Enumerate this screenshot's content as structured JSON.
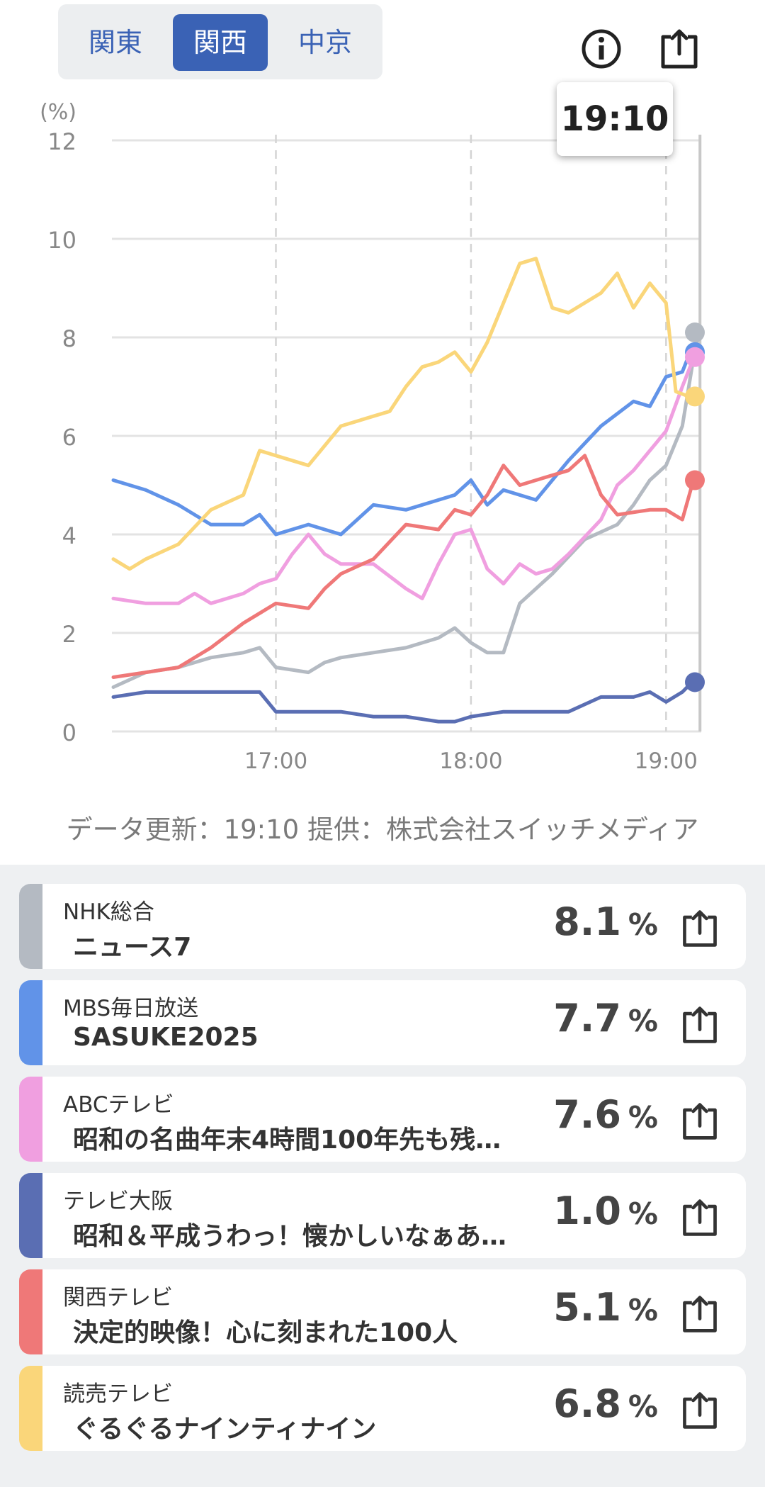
{
  "tabs": [
    {
      "label": "関東",
      "active": false
    },
    {
      "label": "関西",
      "active": true
    },
    {
      "label": "中京",
      "active": false
    }
  ],
  "header": {
    "info_icon": "info-circle-icon",
    "share_icon": "share-icon"
  },
  "tooltip": {
    "time": "19:10"
  },
  "chart_data": {
    "type": "line",
    "ylabel": "(%)",
    "ylim": [
      0,
      12
    ],
    "yticks": [
      "0",
      "2",
      "4",
      "6",
      "8",
      "10",
      "12"
    ],
    "xlim": [
      "16:10",
      "19:13"
    ],
    "xticks": [
      "17:00",
      "18:00",
      "19:00"
    ],
    "current_time": "19:10",
    "grid": true,
    "series": [
      {
        "name": "NHK総合",
        "color": "#b4bac2",
        "end_value": 8.1,
        "points": [
          [
            "16:10",
            0.9
          ],
          [
            "16:20",
            1.2
          ],
          [
            "16:30",
            1.3
          ],
          [
            "16:40",
            1.5
          ],
          [
            "16:50",
            1.6
          ],
          [
            "16:55",
            1.7
          ],
          [
            "17:00",
            1.3
          ],
          [
            "17:10",
            1.2
          ],
          [
            "17:15",
            1.4
          ],
          [
            "17:20",
            1.5
          ],
          [
            "17:30",
            1.6
          ],
          [
            "17:40",
            1.7
          ],
          [
            "17:50",
            1.9
          ],
          [
            "17:55",
            2.1
          ],
          [
            "18:00",
            1.8
          ],
          [
            "18:05",
            1.6
          ],
          [
            "18:10",
            1.6
          ],
          [
            "18:15",
            2.6
          ],
          [
            "18:25",
            3.2
          ],
          [
            "18:35",
            3.9
          ],
          [
            "18:45",
            4.2
          ],
          [
            "18:50",
            4.6
          ],
          [
            "18:55",
            5.1
          ],
          [
            "19:00",
            5.4
          ],
          [
            "19:05",
            6.2
          ],
          [
            "19:08",
            7.4
          ],
          [
            "19:10",
            8.1
          ]
        ]
      },
      {
        "name": "MBS毎日放送",
        "color": "#6193e8",
        "end_value": 7.7,
        "points": [
          [
            "16:10",
            5.1
          ],
          [
            "16:20",
            4.9
          ],
          [
            "16:30",
            4.6
          ],
          [
            "16:40",
            4.2
          ],
          [
            "16:50",
            4.2
          ],
          [
            "16:55",
            4.4
          ],
          [
            "17:00",
            4.0
          ],
          [
            "17:10",
            4.2
          ],
          [
            "17:20",
            4.0
          ],
          [
            "17:30",
            4.6
          ],
          [
            "17:40",
            4.5
          ],
          [
            "17:50",
            4.7
          ],
          [
            "17:55",
            4.8
          ],
          [
            "18:00",
            5.1
          ],
          [
            "18:05",
            4.6
          ],
          [
            "18:10",
            4.9
          ],
          [
            "18:20",
            4.7
          ],
          [
            "18:30",
            5.5
          ],
          [
            "18:40",
            6.2
          ],
          [
            "18:50",
            6.7
          ],
          [
            "18:55",
            6.6
          ],
          [
            "19:00",
            7.2
          ],
          [
            "19:05",
            7.3
          ],
          [
            "19:08",
            7.8
          ],
          [
            "19:10",
            7.7
          ]
        ]
      },
      {
        "name": "ABCテレビ",
        "color": "#f09fe0",
        "end_value": 7.6,
        "points": [
          [
            "16:10",
            2.7
          ],
          [
            "16:20",
            2.6
          ],
          [
            "16:30",
            2.6
          ],
          [
            "16:35",
            2.8
          ],
          [
            "16:40",
            2.6
          ],
          [
            "16:50",
            2.8
          ],
          [
            "16:55",
            3.0
          ],
          [
            "17:00",
            3.1
          ],
          [
            "17:05",
            3.6
          ],
          [
            "17:10",
            4.0
          ],
          [
            "17:15",
            3.6
          ],
          [
            "17:20",
            3.4
          ],
          [
            "17:30",
            3.4
          ],
          [
            "17:40",
            2.9
          ],
          [
            "17:45",
            2.7
          ],
          [
            "17:50",
            3.4
          ],
          [
            "17:55",
            4.0
          ],
          [
            "18:00",
            4.1
          ],
          [
            "18:05",
            3.3
          ],
          [
            "18:10",
            3.0
          ],
          [
            "18:15",
            3.4
          ],
          [
            "18:20",
            3.2
          ],
          [
            "18:25",
            3.3
          ],
          [
            "18:30",
            3.6
          ],
          [
            "18:40",
            4.3
          ],
          [
            "18:45",
            5.0
          ],
          [
            "18:50",
            5.3
          ],
          [
            "18:55",
            5.7
          ],
          [
            "19:00",
            6.1
          ],
          [
            "19:05",
            7.0
          ],
          [
            "19:08",
            7.5
          ],
          [
            "19:10",
            7.6
          ]
        ]
      },
      {
        "name": "テレビ大阪",
        "color": "#5a6eb3",
        "end_value": 1.0,
        "points": [
          [
            "16:10",
            0.7
          ],
          [
            "16:20",
            0.8
          ],
          [
            "16:30",
            0.8
          ],
          [
            "16:40",
            0.8
          ],
          [
            "16:50",
            0.8
          ],
          [
            "16:55",
            0.8
          ],
          [
            "17:00",
            0.4
          ],
          [
            "17:10",
            0.4
          ],
          [
            "17:20",
            0.4
          ],
          [
            "17:30",
            0.3
          ],
          [
            "17:40",
            0.3
          ],
          [
            "17:50",
            0.2
          ],
          [
            "17:55",
            0.2
          ],
          [
            "18:00",
            0.3
          ],
          [
            "18:10",
            0.4
          ],
          [
            "18:20",
            0.4
          ],
          [
            "18:30",
            0.4
          ],
          [
            "18:40",
            0.7
          ],
          [
            "18:50",
            0.7
          ],
          [
            "18:55",
            0.8
          ],
          [
            "19:00",
            0.6
          ],
          [
            "19:05",
            0.8
          ],
          [
            "19:08",
            1.0
          ],
          [
            "19:10",
            1.0
          ]
        ]
      },
      {
        "name": "関西テレビ",
        "color": "#ef7878",
        "end_value": 5.1,
        "points": [
          [
            "16:10",
            1.1
          ],
          [
            "16:20",
            1.2
          ],
          [
            "16:30",
            1.3
          ],
          [
            "16:40",
            1.7
          ],
          [
            "16:50",
            2.2
          ],
          [
            "16:55",
            2.4
          ],
          [
            "17:00",
            2.6
          ],
          [
            "17:10",
            2.5
          ],
          [
            "17:15",
            2.9
          ],
          [
            "17:20",
            3.2
          ],
          [
            "17:30",
            3.5
          ],
          [
            "17:40",
            4.2
          ],
          [
            "17:50",
            4.1
          ],
          [
            "17:55",
            4.5
          ],
          [
            "18:00",
            4.4
          ],
          [
            "18:05",
            4.8
          ],
          [
            "18:10",
            5.4
          ],
          [
            "18:15",
            5.0
          ],
          [
            "18:20",
            5.1
          ],
          [
            "18:30",
            5.3
          ],
          [
            "18:35",
            5.6
          ],
          [
            "18:40",
            4.8
          ],
          [
            "18:45",
            4.4
          ],
          [
            "18:55",
            4.5
          ],
          [
            "19:00",
            4.5
          ],
          [
            "19:05",
            4.3
          ],
          [
            "19:08",
            5.0
          ],
          [
            "19:10",
            5.1
          ]
        ]
      },
      {
        "name": "読売テレビ",
        "color": "#fad67a",
        "end_value": 6.8,
        "points": [
          [
            "16:10",
            3.5
          ],
          [
            "16:15",
            3.3
          ],
          [
            "16:20",
            3.5
          ],
          [
            "16:30",
            3.8
          ],
          [
            "16:40",
            4.5
          ],
          [
            "16:50",
            4.8
          ],
          [
            "16:55",
            5.7
          ],
          [
            "17:00",
            5.6
          ],
          [
            "17:10",
            5.4
          ],
          [
            "17:20",
            6.2
          ],
          [
            "17:30",
            6.4
          ],
          [
            "17:35",
            6.5
          ],
          [
            "17:40",
            7.0
          ],
          [
            "17:45",
            7.4
          ],
          [
            "17:50",
            7.5
          ],
          [
            "17:55",
            7.7
          ],
          [
            "18:00",
            7.3
          ],
          [
            "18:05",
            7.9
          ],
          [
            "18:10",
            8.7
          ],
          [
            "18:15",
            9.5
          ],
          [
            "18:20",
            9.6
          ],
          [
            "18:25",
            8.6
          ],
          [
            "18:30",
            8.5
          ],
          [
            "18:40",
            8.9
          ],
          [
            "18:45",
            9.3
          ],
          [
            "18:50",
            8.6
          ],
          [
            "18:55",
            9.1
          ],
          [
            "19:00",
            8.7
          ],
          [
            "19:03",
            6.9
          ],
          [
            "19:07",
            6.8
          ],
          [
            "19:10",
            6.8
          ]
        ]
      }
    ]
  },
  "footnote": {
    "text": "データ更新：19:10  提供：株式会社スイッチメディア"
  },
  "cards": [
    {
      "color": "#b4bac2",
      "channel": "NHK総合",
      "program": "ニュース7",
      "value": "8.1",
      "unit": "%"
    },
    {
      "color": "#6193e8",
      "channel": "MBS毎日放送",
      "program": "SASUKE2025",
      "value": "7.7",
      "unit": "%"
    },
    {
      "color": "#f09fe0",
      "channel": "ABCテレビ",
      "program": "昭和の名曲年末4時間100年先も残…",
      "value": "7.6",
      "unit": "%"
    },
    {
      "color": "#5a6eb3",
      "channel": "テレビ大阪",
      "program": "昭和＆平成うわっ！懐かしいなぁあ…",
      "value": "1.0",
      "unit": "%"
    },
    {
      "color": "#ef7878",
      "channel": "関西テレビ",
      "program": "決定的映像！心に刻まれた100人",
      "value": "5.1",
      "unit": "%"
    },
    {
      "color": "#fad67a",
      "channel": "読売テレビ",
      "program": "ぐるぐるナインティナイン",
      "value": "6.8",
      "unit": "%"
    }
  ]
}
